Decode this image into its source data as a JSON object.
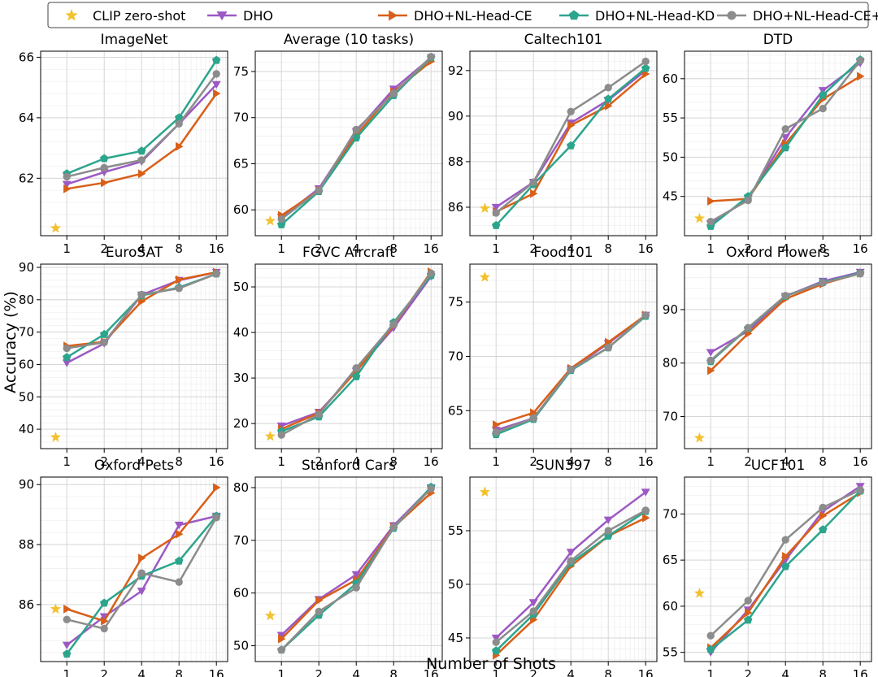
{
  "figure": {
    "xlabel": "Number of Shots",
    "ylabel": "Accuracy (%)",
    "grid": true,
    "legend_placement": "top"
  },
  "legend": [
    {
      "label": "CLIP zero-shot",
      "marker": "star",
      "color": "#f2c12e"
    },
    {
      "label": "DHO",
      "marker": "triangle-down",
      "color": "#9c59c4"
    },
    {
      "label": "DHO+NL-Head-CE",
      "marker": "triangle-right",
      "color": "#d95f18"
    },
    {
      "label": "DHO+NL-Head-KD",
      "marker": "pentagon",
      "color": "#2ca58d"
    },
    {
      "label": "DHO+NL-Head-CE+KD",
      "marker": "circle",
      "color": "#8c8c8c"
    }
  ],
  "chart_data": [
    {
      "type": "line",
      "title": "ImageNet",
      "x": [
        1,
        2,
        4,
        8,
        16
      ],
      "xticks": [
        1,
        2,
        4,
        8,
        16
      ],
      "ylim": [
        60.1,
        66.2
      ],
      "yticks": [
        62,
        64,
        66
      ],
      "zero_shot": 60.35,
      "series": [
        {
          "name": "DHO",
          "values": [
            61.8,
            62.2,
            62.55,
            63.8,
            65.1
          ]
        },
        {
          "name": "DHO+NL-Head-CE",
          "values": [
            61.65,
            61.85,
            62.15,
            63.05,
            64.8
          ]
        },
        {
          "name": "DHO+NL-Head-KD",
          "values": [
            62.15,
            62.65,
            62.9,
            64.0,
            65.9
          ]
        },
        {
          "name": "DHO+NL-Head-CE+KD",
          "values": [
            62.05,
            62.35,
            62.6,
            63.8,
            65.45
          ]
        }
      ]
    },
    {
      "type": "line",
      "title": "Average (10 tasks)",
      "x": [
        1,
        2,
        4,
        8,
        16
      ],
      "xticks": [
        1,
        2,
        4,
        8,
        16
      ],
      "ylim": [
        57.2,
        77.2
      ],
      "yticks": [
        60,
        65,
        70,
        75
      ],
      "zero_shot": 58.8,
      "series": [
        {
          "name": "DHO",
          "values": [
            59.2,
            62.3,
            68.5,
            73.1,
            76.5
          ]
        },
        {
          "name": "DHO+NL-Head-CE",
          "values": [
            59.4,
            62.1,
            68.1,
            72.8,
            76.1
          ]
        },
        {
          "name": "DHO+NL-Head-KD",
          "values": [
            58.4,
            62.0,
            67.8,
            72.4,
            76.5
          ]
        },
        {
          "name": "DHO+NL-Head-CE+KD",
          "values": [
            59.0,
            62.1,
            68.7,
            72.6,
            76.6
          ]
        }
      ]
    },
    {
      "type": "line",
      "title": "Caltech101",
      "x": [
        1,
        2,
        4,
        8,
        16
      ],
      "xticks": [
        1,
        2,
        4,
        8,
        16
      ],
      "ylim": [
        84.75,
        92.85
      ],
      "yticks": [
        86,
        88,
        90,
        92
      ],
      "zero_shot": 85.95,
      "series": [
        {
          "name": "DHO",
          "values": [
            86.0,
            87.1,
            89.7,
            90.7,
            92.0
          ]
        },
        {
          "name": "DHO+NL-Head-CE",
          "values": [
            85.8,
            86.6,
            89.6,
            90.45,
            91.85
          ]
        },
        {
          "name": "DHO+NL-Head-KD",
          "values": [
            85.2,
            87.0,
            88.7,
            90.75,
            92.1
          ]
        },
        {
          "name": "DHO+NL-Head-CE+KD",
          "values": [
            85.75,
            87.1,
            90.2,
            91.25,
            92.4
          ]
        }
      ]
    },
    {
      "type": "line",
      "title": "DTD",
      "x": [
        1,
        2,
        4,
        8,
        16
      ],
      "xticks": [
        1,
        2,
        4,
        8,
        16
      ],
      "ylim": [
        40.0,
        63.5
      ],
      "yticks": [
        45,
        50,
        55,
        60
      ],
      "zero_shot": 42.2,
      "series": [
        {
          "name": "DHO",
          "values": [
            41.5,
            44.7,
            52.5,
            58.5,
            62.0
          ]
        },
        {
          "name": "DHO+NL-Head-CE",
          "values": [
            44.4,
            44.7,
            51.7,
            57.4,
            60.3
          ]
        },
        {
          "name": "DHO+NL-Head-KD",
          "values": [
            41.2,
            45.0,
            51.2,
            57.9,
            62.4
          ]
        },
        {
          "name": "DHO+NL-Head-CE+KD",
          "values": [
            41.8,
            44.5,
            53.6,
            56.2,
            62.3
          ]
        }
      ]
    },
    {
      "type": "line",
      "title": "EuroSAT",
      "x": [
        1,
        2,
        4,
        8,
        16
      ],
      "xticks": [
        1,
        2,
        4,
        8,
        16
      ],
      "ylim": [
        34.0,
        91.0
      ],
      "yticks": [
        40,
        50,
        60,
        70,
        80,
        90
      ],
      "zero_shot": 37.5,
      "series": [
        {
          "name": "DHO",
          "values": [
            60.5,
            66.5,
            81.5,
            86.0,
            88.5
          ]
        },
        {
          "name": "DHO+NL-Head-CE",
          "values": [
            65.7,
            67.0,
            79.5,
            86.2,
            88.5
          ]
        },
        {
          "name": "DHO+NL-Head-KD",
          "values": [
            62.2,
            69.3,
            81.3,
            83.8,
            88.0
          ]
        },
        {
          "name": "DHO+NL-Head-CE+KD",
          "values": [
            65.0,
            66.8,
            81.6,
            83.5,
            88.0
          ]
        }
      ]
    },
    {
      "type": "line",
      "title": "FGVC Aircraft",
      "x": [
        1,
        2,
        4,
        8,
        16
      ],
      "xticks": [
        1,
        2,
        4,
        8,
        16
      ],
      "ylim": [
        14.5,
        55.0
      ],
      "yticks": [
        20,
        30,
        40,
        50
      ],
      "zero_shot": 17.2,
      "series": [
        {
          "name": "DHO",
          "values": [
            19.5,
            22.5,
            31.5,
            41.0,
            52.3
          ]
        },
        {
          "name": "DHO+NL-Head-CE",
          "values": [
            18.8,
            22.3,
            31.5,
            41.5,
            53.3
          ]
        },
        {
          "name": "DHO+NL-Head-KD",
          "values": [
            18.3,
            21.5,
            30.3,
            42.2,
            52.5
          ]
        },
        {
          "name": "DHO+NL-Head-CE+KD",
          "values": [
            17.5,
            22.0,
            32.2,
            41.8,
            53.0
          ]
        }
      ]
    },
    {
      "type": "line",
      "title": "Food101",
      "x": [
        1,
        2,
        4,
        8,
        16
      ],
      "xticks": [
        1,
        2,
        4,
        8,
        16
      ],
      "ylim": [
        61.5,
        78.5
      ],
      "yticks": [
        65,
        70,
        75
      ],
      "zero_shot": 77.3,
      "series": [
        {
          "name": "DHO",
          "values": [
            63.2,
            64.3,
            68.8,
            71.2,
            73.8
          ]
        },
        {
          "name": "DHO+NL-Head-CE",
          "values": [
            63.7,
            64.8,
            68.9,
            71.3,
            73.8
          ]
        },
        {
          "name": "DHO+NL-Head-KD",
          "values": [
            62.8,
            64.2,
            68.7,
            70.8,
            73.7
          ]
        },
        {
          "name": "DHO+NL-Head-CE+KD",
          "values": [
            63.0,
            64.3,
            68.8,
            70.8,
            73.8
          ]
        }
      ]
    },
    {
      "type": "line",
      "title": "Oxford Flowers",
      "x": [
        1,
        2,
        4,
        8,
        16
      ],
      "xticks": [
        1,
        2,
        4,
        8,
        16
      ],
      "ylim": [
        64.0,
        98.5
      ],
      "yticks": [
        70,
        80,
        90
      ],
      "zero_shot": 66.0,
      "series": [
        {
          "name": "DHO",
          "values": [
            82.0,
            86.0,
            92.5,
            95.3,
            97.0
          ]
        },
        {
          "name": "DHO+NL-Head-CE",
          "values": [
            78.6,
            85.5,
            92.0,
            94.8,
            96.8
          ]
        },
        {
          "name": "DHO+NL-Head-KD",
          "values": [
            80.3,
            86.5,
            92.5,
            95.1,
            96.8
          ]
        },
        {
          "name": "DHO+NL-Head-CE+KD",
          "values": [
            80.5,
            86.6,
            92.6,
            95.0,
            96.7
          ]
        }
      ]
    },
    {
      "type": "line",
      "title": "Oxford Pets",
      "x": [
        1,
        2,
        4,
        8,
        16
      ],
      "xticks": [
        1,
        2,
        4,
        8,
        16
      ],
      "ylim": [
        84.1,
        90.25
      ],
      "yticks": [
        86,
        88,
        90
      ],
      "zero_shot": 85.85,
      "series": [
        {
          "name": "DHO",
          "values": [
            84.65,
            85.6,
            86.45,
            88.65,
            88.95
          ]
        },
        {
          "name": "DHO+NL-Head-CE",
          "values": [
            85.85,
            85.45,
            87.55,
            88.35,
            89.9
          ]
        },
        {
          "name": "DHO+NL-Head-KD",
          "values": [
            84.35,
            86.05,
            86.95,
            87.45,
            88.95
          ]
        },
        {
          "name": "DHO+NL-Head-CE+KD",
          "values": [
            85.5,
            85.2,
            87.05,
            86.75,
            88.9
          ]
        }
      ]
    },
    {
      "type": "line",
      "title": "Stanford Cars",
      "x": [
        1,
        2,
        4,
        8,
        16
      ],
      "xticks": [
        1,
        2,
        4,
        8,
        16
      ],
      "ylim": [
        47.0,
        82.0
      ],
      "yticks": [
        50,
        60,
        70,
        80
      ],
      "zero_shot": 55.7,
      "series": [
        {
          "name": "DHO",
          "values": [
            52.0,
            58.8,
            63.5,
            72.8,
            80.0
          ]
        },
        {
          "name": "DHO+NL-Head-CE",
          "values": [
            51.3,
            58.6,
            62.5,
            72.5,
            79.0
          ]
        },
        {
          "name": "DHO+NL-Head-KD",
          "values": [
            49.2,
            55.8,
            61.8,
            72.3,
            80.1
          ]
        },
        {
          "name": "DHO+NL-Head-CE+KD",
          "values": [
            49.2,
            56.5,
            61.0,
            72.5,
            79.8
          ]
        }
      ]
    },
    {
      "type": "line",
      "title": "SUN397",
      "x": [
        1,
        2,
        4,
        8,
        16
      ],
      "xticks": [
        1,
        2,
        4,
        8,
        16
      ],
      "ylim": [
        42.8,
        60.0
      ],
      "yticks": [
        45,
        50,
        55
      ],
      "zero_shot": 58.6,
      "series": [
        {
          "name": "DHO",
          "values": [
            45.0,
            48.3,
            53.0,
            56.0,
            58.6
          ]
        },
        {
          "name": "DHO+NL-Head-CE",
          "values": [
            43.4,
            46.7,
            51.7,
            54.5,
            56.2
          ]
        },
        {
          "name": "DHO+NL-Head-KD",
          "values": [
            43.8,
            47.2,
            52.0,
            54.5,
            56.8
          ]
        },
        {
          "name": "DHO+NL-Head-CE+KD",
          "values": [
            44.6,
            47.5,
            52.2,
            55.0,
            56.9
          ]
        }
      ]
    },
    {
      "type": "line",
      "title": "UCF101",
      "x": [
        1,
        2,
        4,
        8,
        16
      ],
      "xticks": [
        1,
        2,
        4,
        8,
        16
      ],
      "ylim": [
        54.0,
        74.0
      ],
      "yticks": [
        55,
        60,
        65,
        70
      ],
      "zero_shot": 61.4,
      "series": [
        {
          "name": "DHO",
          "values": [
            55.0,
            59.6,
            65.0,
            70.3,
            73.0
          ]
        },
        {
          "name": "DHO+NL-Head-CE",
          "values": [
            55.5,
            59.3,
            65.4,
            69.8,
            72.3
          ]
        },
        {
          "name": "DHO+NL-Head-KD",
          "values": [
            55.3,
            58.5,
            64.3,
            68.3,
            72.5
          ]
        },
        {
          "name": "DHO+NL-Head-CE+KD",
          "values": [
            56.8,
            60.6,
            67.2,
            70.7,
            72.6
          ]
        }
      ]
    }
  ]
}
